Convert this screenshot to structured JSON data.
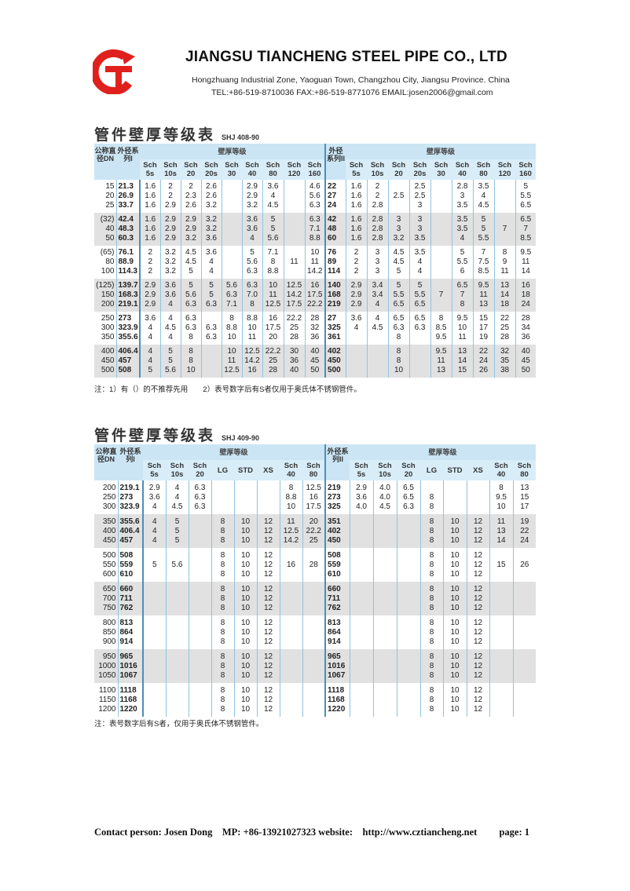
{
  "header": {
    "company": "JIANGSU TIANCHENG STEEL PIPE CO., LTD",
    "address": "Hongzhuang Industrial Zone, Yaoguan Town, Changzhou City, Jiangsu Province. China",
    "contact": "TEL:+86-519-8710036  FAX:+86-519-8771076   EMAIL:josen2006@gmail.com",
    "logo_color": "#e0201c"
  },
  "table1": {
    "title": "管件壁厚等级表",
    "code": "SHJ 408-90",
    "dn_label": "公称直径DN",
    "od1_label": "外径系列I",
    "od2_label": "外径系列II",
    "group_label": "壁厚等级",
    "cols": [
      "Sch 5s",
      "Sch 10s",
      "Sch 20",
      "Sch 20s",
      "Sch 30",
      "Sch 40",
      "Sch 80",
      "Sch 120",
      "Sch 160"
    ],
    "groups": [
      [
        [
          "15",
          "20",
          "25"
        ],
        [
          "21.3",
          "26.9",
          "33.7"
        ],
        [
          "1.6",
          "1.6",
          "1.6"
        ],
        [
          "2",
          "2",
          "2.9"
        ],
        [
          "2",
          "2.3",
          "2.6"
        ],
        [
          "2.6",
          "2.6",
          "3.2"
        ],
        [
          "",
          "",
          ""
        ],
        [
          "2.9",
          "2.9",
          "3.2"
        ],
        [
          "3.6",
          "4",
          "4.5"
        ],
        [
          "",
          "",
          ""
        ],
        [
          "4.6",
          "5.6",
          "6.3"
        ],
        [
          "22",
          "27",
          "24"
        ],
        [
          "1.6",
          "1.6",
          "1.6"
        ],
        [
          "2",
          "2",
          "2.8"
        ],
        [
          "",
          "2.5",
          ""
        ],
        [
          "2.5",
          "2.5",
          "3"
        ],
        [
          "",
          "",
          ""
        ],
        [
          "2.8",
          "3",
          "3.5"
        ],
        [
          "3.5",
          "4",
          "4.5"
        ],
        [
          "",
          "",
          ""
        ],
        [
          "5",
          "5.5",
          "6.5"
        ]
      ],
      [
        [
          "(32)",
          "40",
          "50"
        ],
        [
          "42.4",
          "48.3",
          "60.3"
        ],
        [
          "1.6",
          "1.6",
          "1.6"
        ],
        [
          "2.9",
          "2.9",
          "2.9"
        ],
        [
          "2.9",
          "2.9",
          "3.2"
        ],
        [
          "3.2",
          "3.2",
          "3.6"
        ],
        [
          "",
          "",
          ""
        ],
        [
          "3.6",
          "3.6",
          "4"
        ],
        [
          "5",
          "5",
          "5.6"
        ],
        [
          "",
          "",
          ""
        ],
        [
          "6.3",
          "7.1",
          "8.8"
        ],
        [
          "42",
          "48",
          "60"
        ],
        [
          "1.6",
          "1.6",
          "1.6"
        ],
        [
          "2.8",
          "2.8",
          "2.8"
        ],
        [
          "3",
          "3",
          "3.2"
        ],
        [
          "3",
          "3",
          "3.5"
        ],
        [
          "",
          "",
          ""
        ],
        [
          "3.5",
          "3.5",
          "4"
        ],
        [
          "5",
          "5",
          "5.5"
        ],
        [
          "",
          "7",
          ""
        ],
        [
          "6.5",
          "7",
          "8.5"
        ]
      ],
      [
        [
          "(65)",
          "80",
          "100"
        ],
        [
          "76.1",
          "88.9",
          "114.3"
        ],
        [
          "2",
          "2",
          "2"
        ],
        [
          "3.2",
          "3.2",
          "3.2"
        ],
        [
          "4.5",
          "4.5",
          "5"
        ],
        [
          "3.6",
          "4",
          "4"
        ],
        [
          "",
          "",
          ""
        ],
        [
          "5",
          "5.6",
          "6.3"
        ],
        [
          "7.1",
          "8",
          "8.8"
        ],
        [
          "",
          "11",
          ""
        ],
        [
          "10",
          "11",
          "14.2"
        ],
        [
          "76",
          "89",
          "114"
        ],
        [
          "2",
          "2",
          "2"
        ],
        [
          "3",
          "3",
          "3"
        ],
        [
          "4.5",
          "4.5",
          "5"
        ],
        [
          "3.5",
          "4",
          "4"
        ],
        [
          "",
          "",
          ""
        ],
        [
          "5",
          "5.5",
          "6"
        ],
        [
          "7",
          "7.5",
          "8.5"
        ],
        [
          "8",
          "9",
          "11"
        ],
        [
          "9.5",
          "11",
          "14"
        ]
      ],
      [
        [
          "(125)",
          "150",
          "200"
        ],
        [
          "139.7",
          "168.3",
          "219.1"
        ],
        [
          "2.9",
          "2.9",
          "2.9"
        ],
        [
          "3.6",
          "3.6",
          "4"
        ],
        [
          "5",
          "5.6",
          "6.3"
        ],
        [
          "5",
          "5",
          "6.3"
        ],
        [
          "5.6",
          "6.3",
          "7.1"
        ],
        [
          "6.3",
          "7.0",
          "8"
        ],
        [
          "10",
          "11",
          "12.5"
        ],
        [
          "12.5",
          "14.2",
          "17.5"
        ],
        [
          "16",
          "17.5",
          "22.2"
        ],
        [
          "140",
          "168",
          "219"
        ],
        [
          "2.9",
          "2.9",
          "2.9"
        ],
        [
          "3.4",
          "3.4",
          "4"
        ],
        [
          "5",
          "5.5",
          "6.5"
        ],
        [
          "5",
          "5.5",
          "6.5"
        ],
        [
          "",
          "7",
          ""
        ],
        [
          "6.5",
          "7",
          "8"
        ],
        [
          "9.5",
          "11",
          "13"
        ],
        [
          "13",
          "14",
          "18"
        ],
        [
          "16",
          "18",
          "24"
        ]
      ],
      [
        [
          "250",
          "300",
          "350"
        ],
        [
          "273",
          "323.9",
          "355.6"
        ],
        [
          "3.6",
          "4",
          "4"
        ],
        [
          "4",
          "4.5",
          "4"
        ],
        [
          "6.3",
          "6.3",
          "8"
        ],
        [
          "",
          "6.3",
          "6.3"
        ],
        [
          "8",
          "8.8",
          "10"
        ],
        [
          "8.8",
          "10",
          "11"
        ],
        [
          "16",
          "17.5",
          "20"
        ],
        [
          "22.2",
          "25",
          "28"
        ],
        [
          "28",
          "32",
          "36"
        ],
        [
          "27",
          "325",
          "361"
        ],
        [
          "3.6",
          "4",
          ""
        ],
        [
          "4",
          "4.5",
          ""
        ],
        [
          "6.5",
          "6.3",
          "8"
        ],
        [
          "6.5",
          "6.3",
          ""
        ],
        [
          "8",
          "8.5",
          "9.5"
        ],
        [
          "9.5",
          "10",
          "11"
        ],
        [
          "15",
          "17",
          "19"
        ],
        [
          "22",
          "25",
          "28"
        ],
        [
          "28",
          "34",
          "36"
        ]
      ],
      [
        [
          "400",
          "450",
          "500"
        ],
        [
          "406.4",
          "457",
          "508"
        ],
        [
          "4",
          "4",
          "5"
        ],
        [
          "5",
          "5",
          "5.6"
        ],
        [
          "8",
          "8",
          "10"
        ],
        [
          "",
          "",
          ""
        ],
        [
          "10",
          "11",
          "12.5"
        ],
        [
          "12.5",
          "14.2",
          "16"
        ],
        [
          "22.2",
          "25",
          "28"
        ],
        [
          "30",
          "36",
          "40"
        ],
        [
          "40",
          "45",
          "50"
        ],
        [
          "402",
          "450",
          "500"
        ],
        [
          "",
          "",
          ""
        ],
        [
          "",
          "",
          ""
        ],
        [
          "8",
          "8",
          "10"
        ],
        [
          "",
          "",
          ""
        ],
        [
          "9.5",
          "11",
          "13"
        ],
        [
          "13",
          "14",
          "15"
        ],
        [
          "22",
          "24",
          "26"
        ],
        [
          "32",
          "35",
          "38"
        ],
        [
          "40",
          "45",
          "50"
        ]
      ]
    ],
    "note": "注：1）有（）的不推荐先用　　2）表号数字后有S者仅用于奥氏体不锈钢管件。"
  },
  "table2": {
    "title": "管件壁厚等级表",
    "code": "SHJ 409-90",
    "dn_label": "公称直径DN",
    "od1_label": "外径系列I",
    "od2_label": "外径系列II",
    "group_label": "壁厚等级",
    "cols": [
      "Sch 5s",
      "Sch 10s",
      "Sch 20",
      "LG",
      "STD",
      "XS",
      "Sch 40",
      "Sch 80"
    ],
    "groups": [
      [
        [
          "200",
          "250",
          "300"
        ],
        [
          "219.1",
          "273",
          "323.9"
        ],
        [
          "2.9",
          "3.6",
          "4"
        ],
        [
          "4",
          "4",
          "4.5"
        ],
        [
          "6.3",
          "6.3",
          "6.3"
        ],
        [
          "",
          "",
          ""
        ],
        [
          "",
          "",
          ""
        ],
        [
          "",
          "",
          ""
        ],
        [
          "8",
          "8.8",
          "10"
        ],
        [
          "12.5",
          "16",
          "17.5"
        ],
        [
          "219",
          "273",
          "325"
        ],
        [
          "2.9",
          "3.6",
          "4.0"
        ],
        [
          "4.0",
          "4.0",
          "4.5"
        ],
        [
          "6.5",
          "6.5",
          "6.3"
        ],
        [
          "",
          "8",
          "8"
        ],
        [
          "",
          "",
          ""
        ],
        [
          "",
          "",
          ""
        ],
        [
          "8",
          "9.5",
          "10"
        ],
        [
          "13",
          "15",
          "17"
        ]
      ],
      [
        [
          "350",
          "400",
          "450"
        ],
        [
          "355.6",
          "406.4",
          "457"
        ],
        [
          "4",
          "4",
          "4"
        ],
        [
          "5",
          "5",
          "5"
        ],
        [
          "",
          "",
          ""
        ],
        [
          "8",
          "8",
          "8"
        ],
        [
          "10",
          "10",
          "10"
        ],
        [
          "12",
          "12",
          "12"
        ],
        [
          "11",
          "12.5",
          "14.2"
        ],
        [
          "20",
          "22.2",
          "25"
        ],
        [
          "351",
          "402",
          "450"
        ],
        [
          "",
          "",
          ""
        ],
        [
          "",
          "",
          ""
        ],
        [
          "",
          "",
          ""
        ],
        [
          "8",
          "8",
          "8"
        ],
        [
          "10",
          "10",
          "10"
        ],
        [
          "12",
          "12",
          "12"
        ],
        [
          "11",
          "13",
          "14"
        ],
        [
          "19",
          "22",
          "24"
        ]
      ],
      [
        [
          "500",
          "550",
          "600"
        ],
        [
          "508",
          "559",
          "610"
        ],
        [
          "",
          "5",
          ""
        ],
        [
          "",
          "5.6",
          ""
        ],
        [
          "",
          "",
          ""
        ],
        [
          "8",
          "8",
          "8"
        ],
        [
          "10",
          "10",
          "10"
        ],
        [
          "12",
          "12",
          "12"
        ],
        [
          "",
          "16",
          ""
        ],
        [
          "",
          "28",
          ""
        ],
        [
          "508",
          "559",
          "610"
        ],
        [
          "",
          "",
          ""
        ],
        [
          "",
          "",
          ""
        ],
        [
          "",
          "",
          ""
        ],
        [
          "8",
          "8",
          "8"
        ],
        [
          "10",
          "10",
          "10"
        ],
        [
          "12",
          "12",
          "12"
        ],
        [
          "",
          "15",
          ""
        ],
        [
          "",
          "26",
          ""
        ]
      ],
      [
        [
          "650",
          "700",
          "750"
        ],
        [
          "660",
          "711",
          "762"
        ],
        [
          "",
          "",
          ""
        ],
        [
          "",
          "",
          ""
        ],
        [
          "",
          "",
          ""
        ],
        [
          "8",
          "8",
          "8"
        ],
        [
          "10",
          "10",
          "10"
        ],
        [
          "12",
          "12",
          "12"
        ],
        [
          "",
          "",
          ""
        ],
        [
          "",
          "",
          ""
        ],
        [
          "660",
          "711",
          "762"
        ],
        [
          "",
          "",
          ""
        ],
        [
          "",
          "",
          ""
        ],
        [
          "",
          "",
          ""
        ],
        [
          "8",
          "8",
          "8"
        ],
        [
          "10",
          "10",
          "10"
        ],
        [
          "12",
          "12",
          "12"
        ],
        [
          "",
          "",
          ""
        ],
        [
          "",
          "",
          ""
        ]
      ],
      [
        [
          "800",
          "850",
          "900"
        ],
        [
          "813",
          "864",
          "914"
        ],
        [
          "",
          "",
          ""
        ],
        [
          "",
          "",
          ""
        ],
        [
          "",
          "",
          ""
        ],
        [
          "8",
          "8",
          "8"
        ],
        [
          "10",
          "10",
          "10"
        ],
        [
          "12",
          "12",
          "12"
        ],
        [
          "",
          "",
          ""
        ],
        [
          "",
          "",
          ""
        ],
        [
          "813",
          "864",
          "914"
        ],
        [
          "",
          "",
          ""
        ],
        [
          "",
          "",
          ""
        ],
        [
          "",
          "",
          ""
        ],
        [
          "8",
          "8",
          "8"
        ],
        [
          "10",
          "10",
          "10"
        ],
        [
          "12",
          "12",
          "12"
        ],
        [
          "",
          "",
          ""
        ],
        [
          "",
          "",
          ""
        ]
      ],
      [
        [
          "950",
          "1000",
          "1050"
        ],
        [
          "965",
          "1016",
          "1067"
        ],
        [
          "",
          "",
          ""
        ],
        [
          "",
          "",
          ""
        ],
        [
          "",
          "",
          ""
        ],
        [
          "8",
          "8",
          "8"
        ],
        [
          "10",
          "10",
          "10"
        ],
        [
          "12",
          "12",
          "12"
        ],
        [
          "",
          "",
          ""
        ],
        [
          "",
          "",
          ""
        ],
        [
          "965",
          "1016",
          "1067"
        ],
        [
          "",
          "",
          ""
        ],
        [
          "",
          "",
          ""
        ],
        [
          "",
          "",
          ""
        ],
        [
          "8",
          "8",
          "8"
        ],
        [
          "10",
          "10",
          "10"
        ],
        [
          "12",
          "12",
          "12"
        ],
        [
          "",
          "",
          ""
        ],
        [
          "",
          "",
          ""
        ]
      ],
      [
        [
          "1100",
          "1150",
          "1200"
        ],
        [
          "1118",
          "1168",
          "1220"
        ],
        [
          "",
          "",
          ""
        ],
        [
          "",
          "",
          ""
        ],
        [
          "",
          "",
          ""
        ],
        [
          "8",
          "8",
          "8"
        ],
        [
          "10",
          "10",
          "10"
        ],
        [
          "12",
          "12",
          "12"
        ],
        [
          "",
          "",
          ""
        ],
        [
          "",
          "",
          ""
        ],
        [
          "1118",
          "1168",
          "1220"
        ],
        [
          "",
          "",
          ""
        ],
        [
          "",
          "",
          ""
        ],
        [
          "",
          "",
          ""
        ],
        [
          "8",
          "8",
          "8"
        ],
        [
          "10",
          "10",
          "10"
        ],
        [
          "12",
          "12",
          "12"
        ],
        [
          "",
          "",
          ""
        ],
        [
          "",
          "",
          ""
        ]
      ]
    ],
    "note": "注：表号数字后有S者，仅用于奥氏体不锈钢管件。"
  },
  "footer": {
    "contact_person": "Contact person: Josen Dong",
    "mobile": "MP: +86-13921027323",
    "website_label": "website:",
    "website": "http://www.cztiancheng.net",
    "page": "page: 1"
  }
}
